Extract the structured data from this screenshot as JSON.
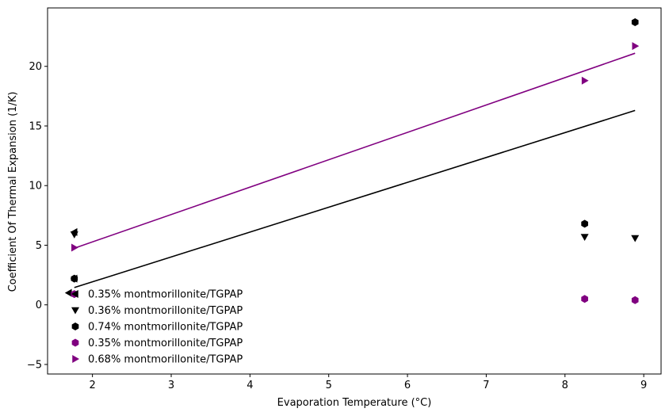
{
  "chart_data": {
    "type": "scatter",
    "title": "",
    "xlabel": "Evaporation Temperature (°C)",
    "ylabel": "Coefficient Of Thermal Expansion (1/K)",
    "xlim": [
      1.43,
      9.22
    ],
    "ylim": [
      -5.8,
      24.9
    ],
    "xticks": [
      2,
      3,
      4,
      5,
      6,
      7,
      8,
      9
    ],
    "yticks": [
      -5,
      0,
      5,
      10,
      15,
      20
    ],
    "grid": false,
    "legend_position": "lower-left",
    "series": [
      {
        "name": "0.35% montmorillonite/TGPAP",
        "marker": "triangle-left",
        "color": "#000000",
        "points": [
          [
            1.7,
            1.0
          ],
          [
            1.77,
            2.2
          ],
          [
            1.77,
            6.1
          ]
        ]
      },
      {
        "name": "0.36% montmorillonite/TGPAP",
        "marker": "triangle-down",
        "color": "#000000",
        "points": [
          [
            1.77,
            5.9
          ],
          [
            8.25,
            5.7
          ],
          [
            8.89,
            5.6
          ]
        ]
      },
      {
        "name": "0.74% montmorillonite/TGPAP",
        "marker": "hexagon",
        "color": "#000000",
        "points": [
          [
            1.77,
            2.2
          ],
          [
            8.25,
            6.8
          ],
          [
            8.89,
            23.7
          ]
        ]
      },
      {
        "name": "0.35% montmorillonite/TGPAP",
        "marker": "hexagon",
        "color": "#800080",
        "points": [
          [
            1.77,
            0.9
          ],
          [
            8.25,
            0.5
          ],
          [
            8.89,
            0.4
          ]
        ]
      },
      {
        "name": "0.68% montmorillonite/TGPAP",
        "marker": "triangle-right",
        "color": "#800080",
        "points": [
          [
            1.77,
            4.8
          ],
          [
            8.25,
            18.8
          ],
          [
            8.89,
            21.7
          ]
        ]
      }
    ],
    "fit_lines": [
      {
        "color": "#000000",
        "points": [
          [
            1.77,
            1.45
          ],
          [
            8.89,
            16.3
          ]
        ]
      },
      {
        "color": "#800080",
        "points": [
          [
            1.77,
            4.75
          ],
          [
            8.89,
            21.1
          ]
        ]
      }
    ]
  }
}
